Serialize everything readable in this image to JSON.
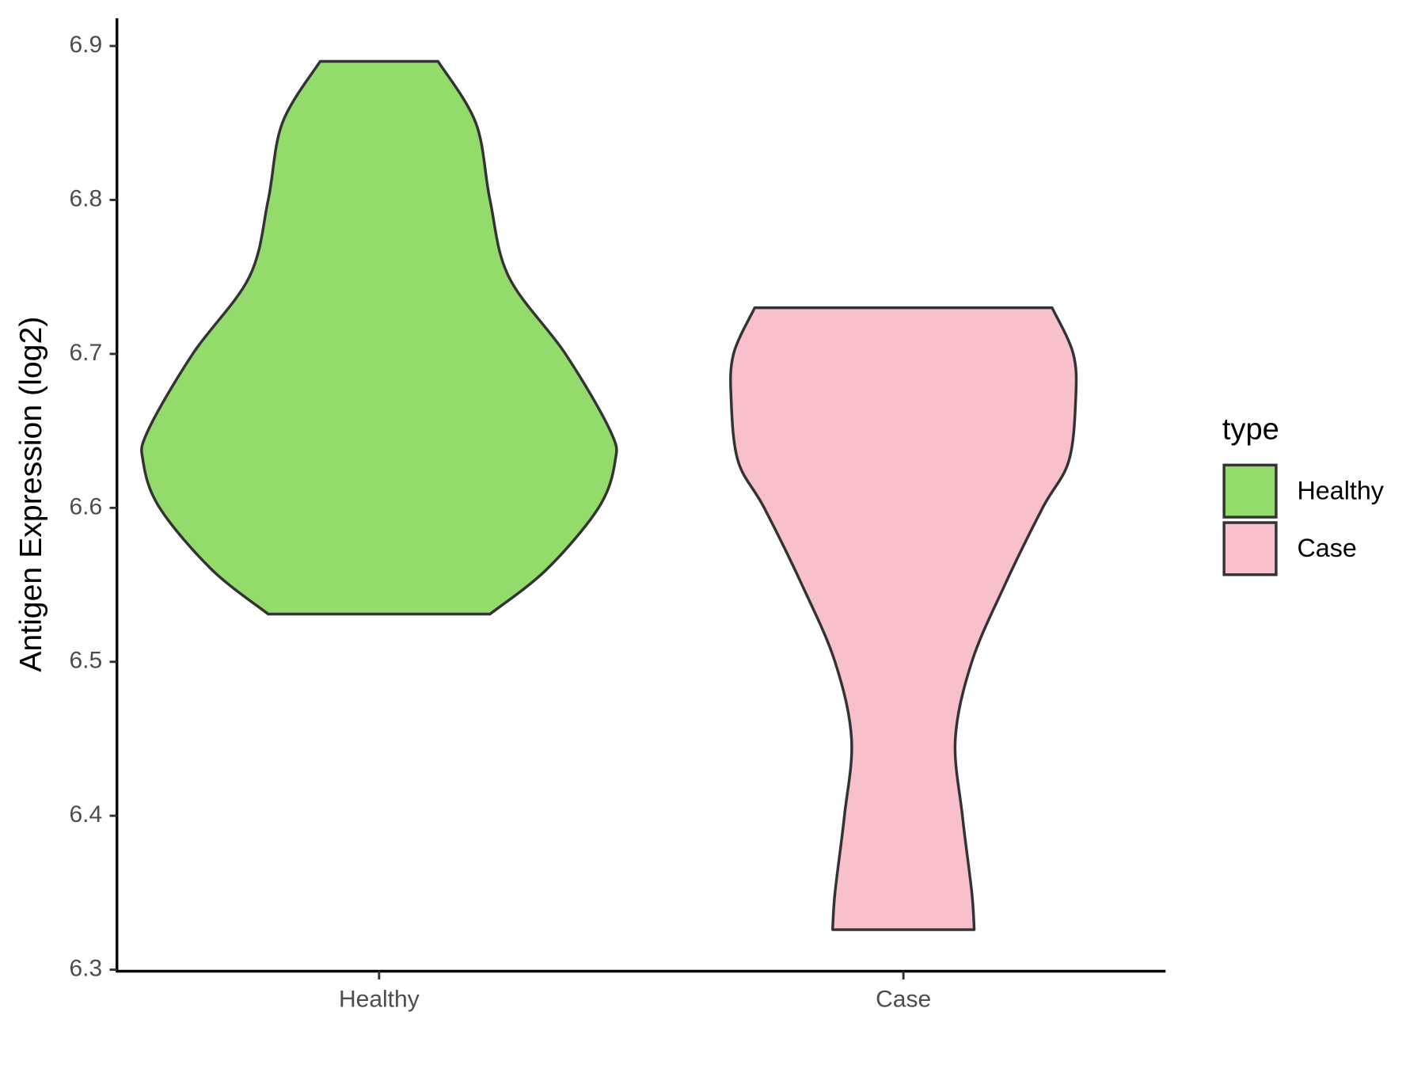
{
  "chart_data": {
    "type": "violin",
    "ylabel": "Antigen Expression (log2)",
    "categories": [
      "Healthy",
      "Case"
    ],
    "ylim": [
      6.299,
      6.918
    ],
    "yticks": [
      6.3,
      6.4,
      6.5,
      6.6,
      6.7,
      6.8,
      6.9
    ],
    "legend_title": "type",
    "legend": "right",
    "series": [
      {
        "name": "Healthy",
        "color": "#93dc6b",
        "y": [
          6.89,
          6.85,
          6.8,
          6.75,
          6.7,
          6.65,
          6.63,
          6.6,
          6.56,
          6.531
        ],
        "width": [
          0.25,
          0.41,
          0.47,
          0.55,
          0.79,
          0.98,
          1.0,
          0.93,
          0.71,
          0.47
        ]
      },
      {
        "name": "Case",
        "color": "#f7c0cb",
        "y": [
          6.73,
          6.7,
          6.67,
          6.63,
          6.6,
          6.55,
          6.5,
          6.45,
          6.4,
          6.35,
          6.326
        ],
        "width": [
          0.63,
          0.72,
          0.73,
          0.7,
          0.59,
          0.43,
          0.29,
          0.22,
          0.25,
          0.29,
          0.3
        ]
      }
    ]
  }
}
